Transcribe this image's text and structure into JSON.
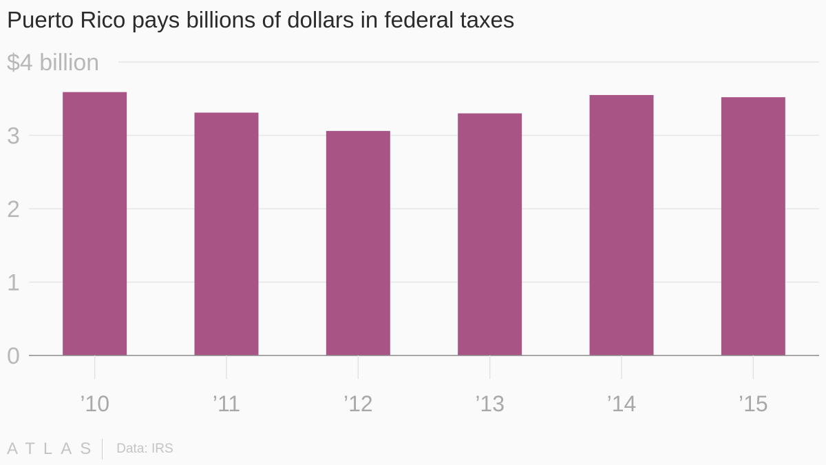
{
  "chart_data": {
    "type": "bar",
    "title": "Puerto Rico pays billions of dollars in federal taxes",
    "categories": [
      "’10",
      "’11",
      "’12",
      "’13",
      "’14",
      "’15"
    ],
    "values": [
      3.59,
      3.31,
      3.06,
      3.3,
      3.55,
      3.52
    ],
    "ylim": [
      0,
      4
    ],
    "yticks": [
      {
        "value": 0,
        "label": "0"
      },
      {
        "value": 1,
        "label": "1"
      },
      {
        "value": 2,
        "label": "2"
      },
      {
        "value": 3,
        "label": "3"
      },
      {
        "value": 4,
        "label": "$4 billion"
      }
    ],
    "grid": true,
    "bar_color": "#a85585",
    "xlabel": "",
    "ylabel": ""
  },
  "footer": {
    "brand": "ATLAS",
    "source": "Data: IRS"
  }
}
